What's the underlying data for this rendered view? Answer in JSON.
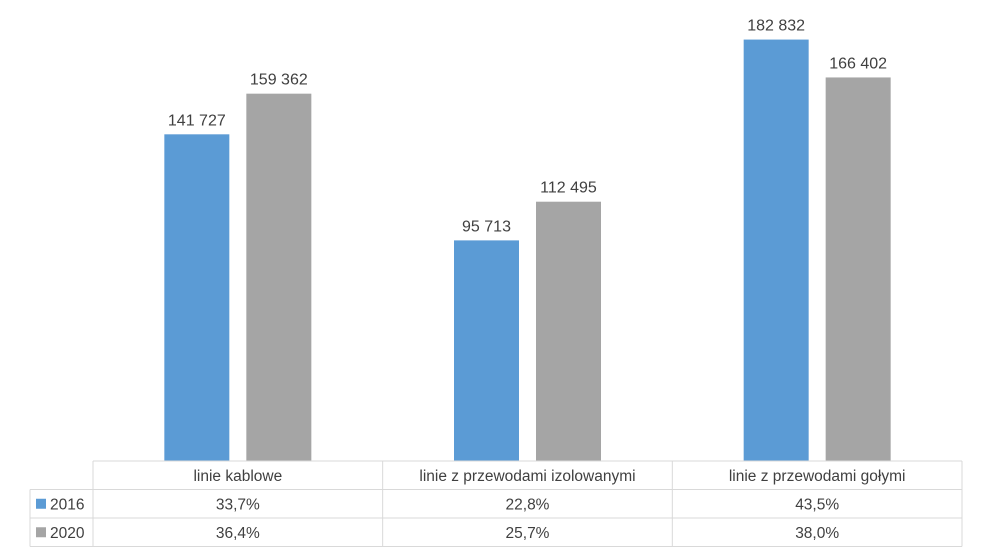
{
  "chart_data": {
    "type": "bar",
    "categories": [
      "linie kablowe",
      "linie z przewodami izolowanymi",
      "linie z przewodami gołymi"
    ],
    "series": [
      {
        "name": "2016",
        "color": "#5b9bd5",
        "values": [
          141727,
          95713,
          182832
        ],
        "value_labels": [
          "141 727",
          "95 713",
          "182 832"
        ],
        "table_values": [
          "33,7%",
          "22,8%",
          "43,5%"
        ]
      },
      {
        "name": "2020",
        "color": "#a5a5a5",
        "values": [
          159362,
          112495,
          166402
        ],
        "value_labels": [
          "159 362",
          "112 495",
          "166 402"
        ],
        "table_values": [
          "36,4%",
          "25,7%",
          "38,0%"
        ]
      }
    ],
    "ylim": [
      0,
      200000
    ],
    "data_table": true,
    "legend": "in-data-table",
    "grid": false
  }
}
